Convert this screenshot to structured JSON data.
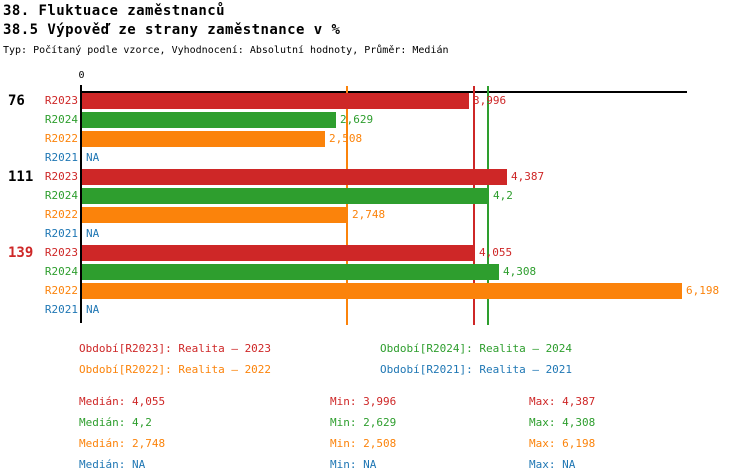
{
  "header": {
    "title": "38. Fluktuace zaměstnanců",
    "subtitle": "38.5 Výpověď ze strany zaměstnance v %",
    "meta": "Typ: Počítaný podle vzorce, Vyhodnocení: Absolutní hodnoty, Průměr: Medián"
  },
  "colors": {
    "R2023": "#CE2727",
    "R2024": "#2E9E2E",
    "R2022": "#FB830B",
    "R2021": "#1F77B4",
    "axis": "#000000",
    "group_alert": "#CE2727",
    "group_normal": "#000000"
  },
  "chart_data": {
    "type": "bar",
    "orientation": "horizontal",
    "x_axis": {
      "zero_label": "0",
      "min": 0,
      "max": 6.26,
      "gridlines": false
    },
    "legend_position": "bottom",
    "groups": [
      {
        "label": "76",
        "label_color": "#000000",
        "bars": [
          {
            "series": "R2023",
            "value": 3.996,
            "display": "3,996"
          },
          {
            "series": "R2024",
            "value": 2.629,
            "display": "2,629"
          },
          {
            "series": "R2022",
            "value": 2.508,
            "display": "2,508"
          },
          {
            "series": "R2021",
            "value": null,
            "display": "NA"
          }
        ]
      },
      {
        "label": "111",
        "label_color": "#000000",
        "bars": [
          {
            "series": "R2023",
            "value": 4.387,
            "display": "4,387"
          },
          {
            "series": "R2024",
            "value": 4.2,
            "display": "4,2"
          },
          {
            "series": "R2022",
            "value": 2.748,
            "display": "2,748"
          },
          {
            "series": "R2021",
            "value": null,
            "display": "NA"
          }
        ]
      },
      {
        "label": "139",
        "label_color": "#CE2727",
        "bars": [
          {
            "series": "R2023",
            "value": 4.055,
            "display": "4,055"
          },
          {
            "series": "R2024",
            "value": 4.308,
            "display": "4,308"
          },
          {
            "series": "R2022",
            "value": 6.198,
            "display": "6,198"
          },
          {
            "series": "R2021",
            "value": null,
            "display": "NA"
          }
        ]
      }
    ],
    "median_lines": [
      {
        "series": "R2023",
        "value": 4.055
      },
      {
        "series": "R2024",
        "value": 4.2
      },
      {
        "series": "R2022",
        "value": 2.748
      }
    ],
    "legend": [
      {
        "series": "R2023",
        "label": "Období[R2023]: Realita – 2023",
        "col": 0,
        "row": 0
      },
      {
        "series": "R2024",
        "label": "Období[R2024]: Realita – 2024",
        "col": 1,
        "row": 0
      },
      {
        "series": "R2022",
        "label": "Období[R2022]: Realita – 2022",
        "col": 0,
        "row": 1
      },
      {
        "series": "R2021",
        "label": "Období[R2021]: Realita – 2021",
        "col": 1,
        "row": 1
      }
    ],
    "stats": {
      "median_label": "Medián",
      "min_label": "Min",
      "max_label": "Max",
      "rows": [
        {
          "series": "R2023",
          "median": "4,055",
          "min": "3,996",
          "max": "4,387"
        },
        {
          "series": "R2024",
          "median": "4,2",
          "min": "2,629",
          "max": "4,308"
        },
        {
          "series": "R2022",
          "median": "2,748",
          "min": "2,508",
          "max": "6,198"
        },
        {
          "series": "R2021",
          "median": "NA",
          "min": "NA",
          "max": "NA"
        }
      ]
    }
  }
}
